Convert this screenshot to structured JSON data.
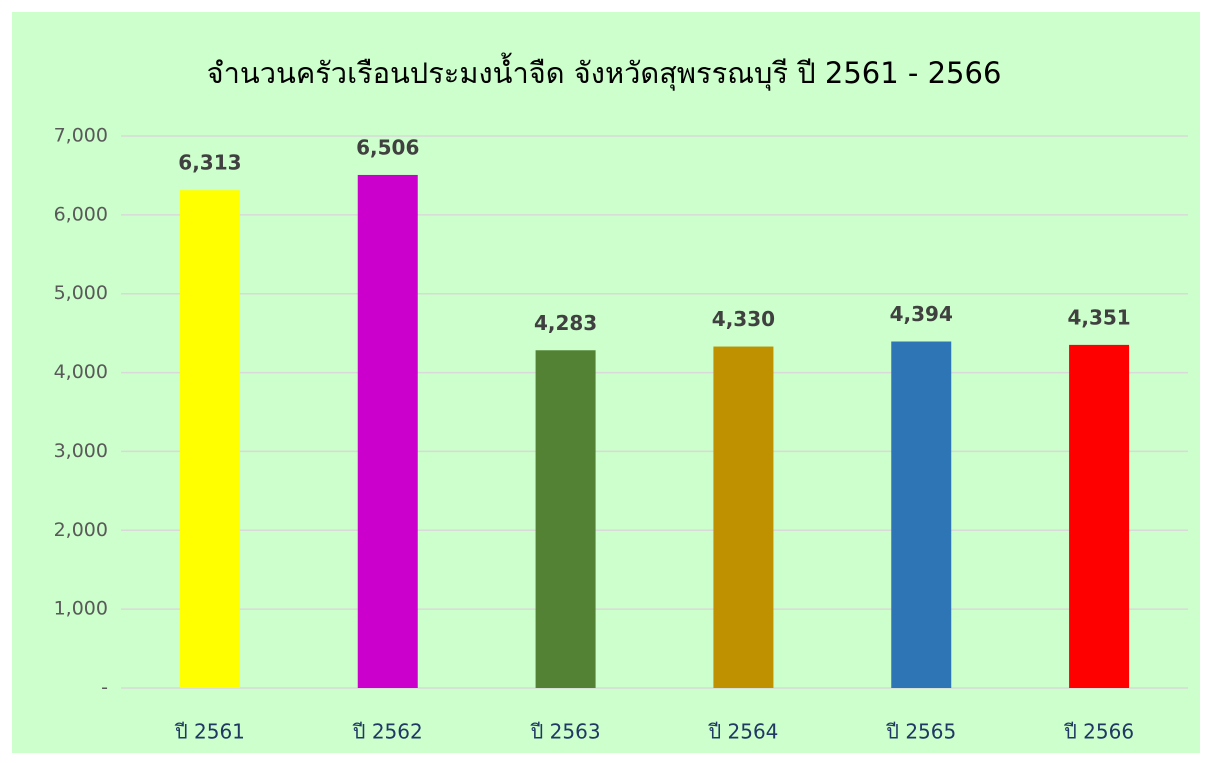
{
  "chart_data": {
    "type": "bar",
    "title": "จำนวนครัวเรือนประมงน้ำจืด จังหวัดสุพรรณบุรี ปี 2561 - 2566",
    "categories": [
      "ปี 2561",
      "ปี 2562",
      "ปี 2563",
      "ปี 2564",
      "ปี 2565",
      "ปี 2566"
    ],
    "values": [
      6313,
      6506,
      4283,
      4330,
      4394,
      4351
    ],
    "value_labels": [
      "6,313",
      "6,506",
      "4,283",
      "4,330",
      "4,394",
      "4,351"
    ],
    "colors": [
      "#ffff00",
      "#cc00cc",
      "#548235",
      "#bf9000",
      "#2e75b6",
      "#ff0000"
    ],
    "ylim": [
      0,
      7000
    ],
    "yticks": [
      {
        "value": 0,
        "label": "-"
      },
      {
        "value": 1000,
        "label": "1,000"
      },
      {
        "value": 2000,
        "label": "2,000"
      },
      {
        "value": 3000,
        "label": "3,000"
      },
      {
        "value": 4000,
        "label": "4,000"
      },
      {
        "value": 5000,
        "label": "5,000"
      },
      {
        "value": 6000,
        "label": "6,000"
      },
      {
        "value": 7000,
        "label": "7,000"
      }
    ],
    "grid": true
  }
}
